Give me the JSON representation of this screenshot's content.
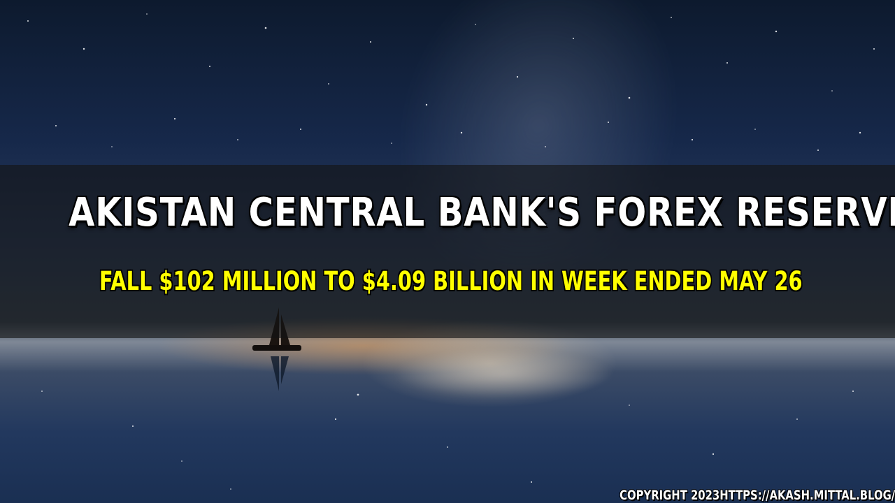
{
  "scene": {
    "description_icon": "night-sky-sea-sailboat-image",
    "colors": {
      "band": "#141414",
      "headline": "#ffffff",
      "subline": "#ffff00"
    }
  },
  "headline": {
    "text": "AKISTAN CENTRAL BANK'S FOREX RESERVE"
  },
  "subline": {
    "text": "FALL $102 MILLION TO $4.09 BILLION IN WEEK ENDED MAY 26"
  },
  "footer": {
    "copyright": "COPYRIGHT 2023HTTPS://AKASH.MITTAL.BLOG/"
  }
}
